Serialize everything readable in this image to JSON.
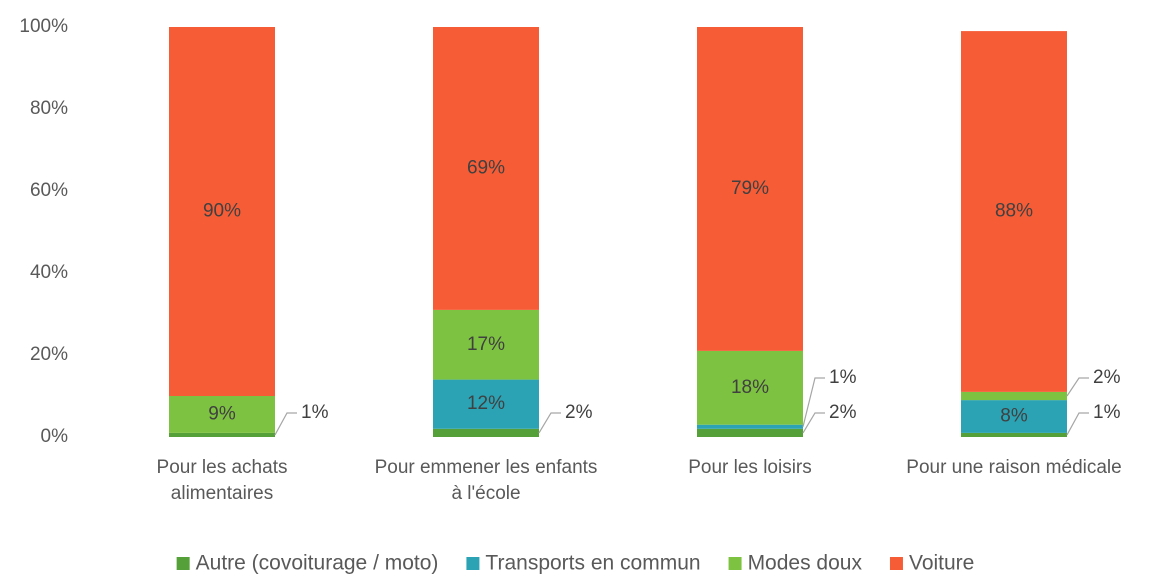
{
  "chart_data": {
    "type": "stacked_bar",
    "categories": [
      "Pour les achats alimentaires",
      "Pour emmener les enfants à l'école",
      "Pour les loisirs",
      "Pour une raison médicale"
    ],
    "series": [
      {
        "name": "Autre (covoiturage / moto)",
        "color": "#56a03a",
        "values": [
          1,
          2,
          2,
          1
        ],
        "value_labels": [
          "1%",
          "2%",
          "2%",
          "1%"
        ]
      },
      {
        "name": "Transports en commun",
        "color": "#2ba3b4",
        "values": [
          0,
          12,
          1,
          8
        ],
        "value_labels": [
          null,
          "12%",
          "1%",
          "8%"
        ]
      },
      {
        "name": "Modes doux",
        "color": "#7ec242",
        "values": [
          9,
          17,
          18,
          2
        ],
        "value_labels": [
          "9%",
          "17%",
          "18%",
          "2%"
        ]
      },
      {
        "name": "Voiture",
        "color": "#f65d37",
        "values": [
          90,
          69,
          79,
          88
        ],
        "value_labels": [
          "90%",
          "69%",
          "79%",
          "88%"
        ]
      }
    ],
    "ylim": [
      0,
      100
    ],
    "yticks": [
      {
        "value": 0,
        "label": "0%"
      },
      {
        "value": 20,
        "label": "20%"
      },
      {
        "value": 40,
        "label": "40%"
      },
      {
        "value": 60,
        "label": "60%"
      },
      {
        "value": 80,
        "label": "80%"
      },
      {
        "value": 100,
        "label": "100%"
      }
    ],
    "grid": false,
    "legend": "bottom"
  }
}
